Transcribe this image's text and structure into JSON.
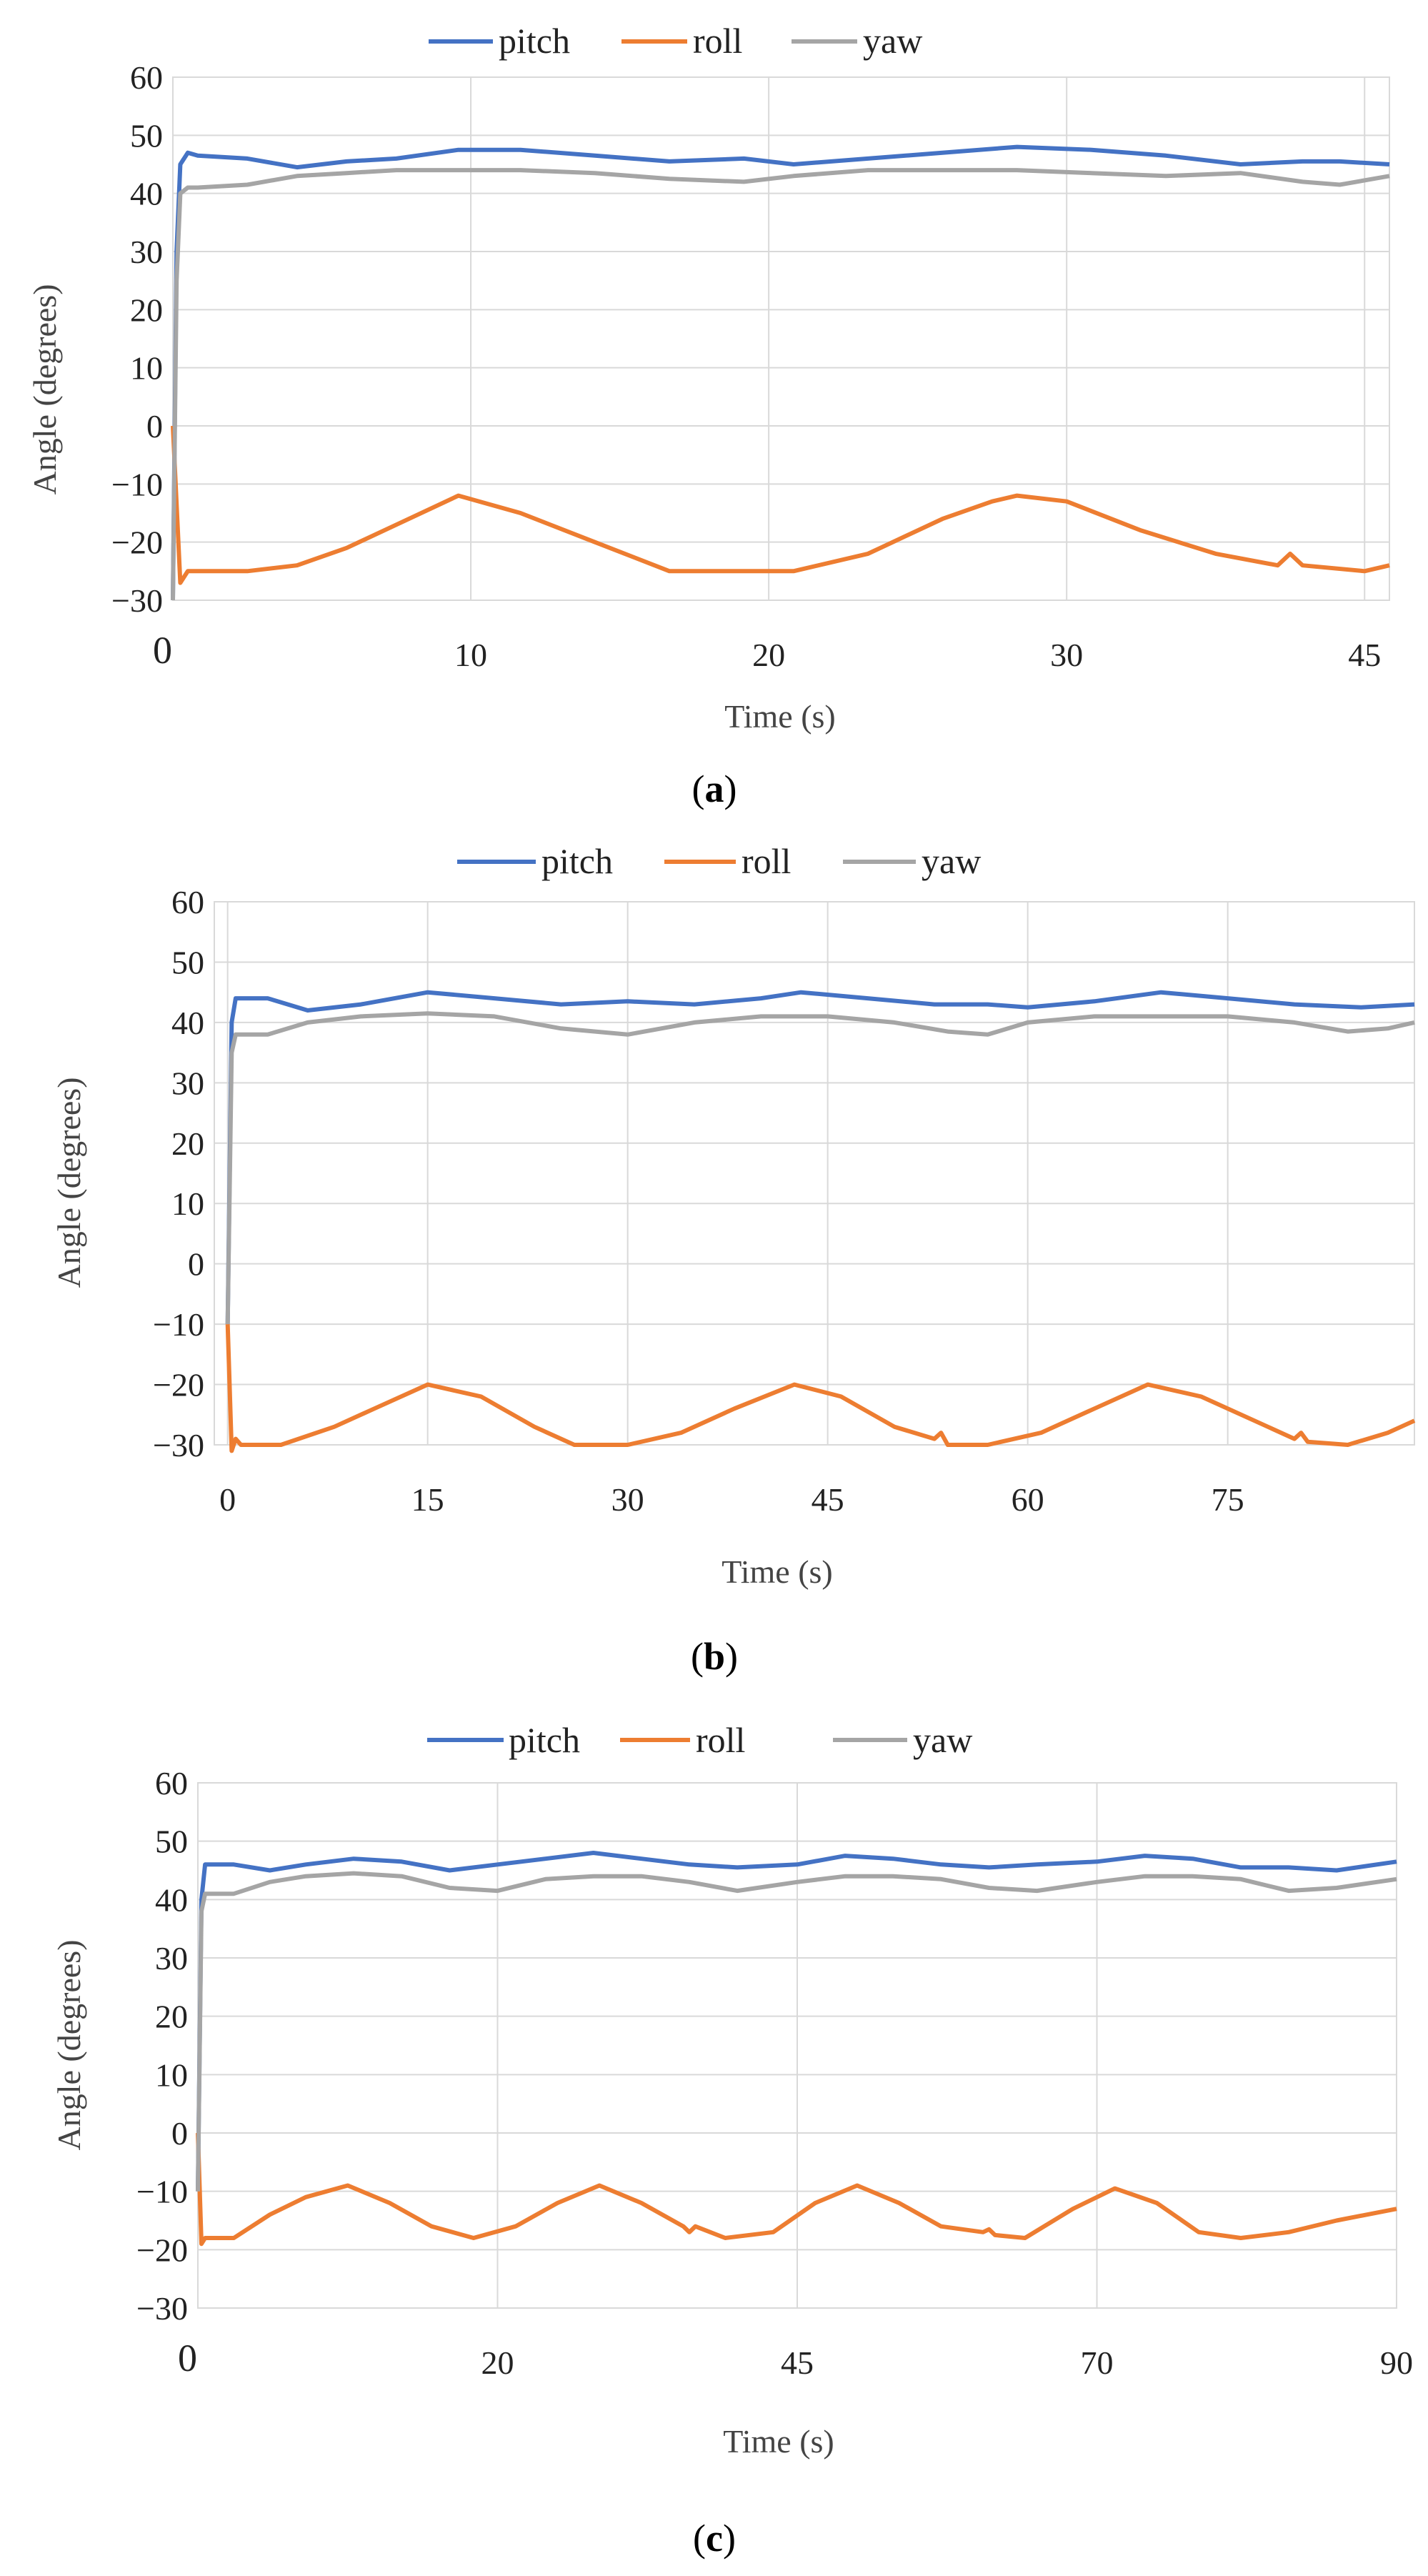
{
  "colors": {
    "pitch": "#4472C4",
    "roll": "#ED7D31",
    "yaw": "#A5A5A5",
    "grid": "#D9D9D9"
  },
  "chart_data": [
    {
      "type": "line",
      "panel_label": "a",
      "legend": [
        "pitch",
        "roll",
        "yaw"
      ],
      "xlabel": "Time (s)",
      "ylabel": "Angle (degrees)",
      "ylim": [
        -30,
        60
      ],
      "yticks": [
        -30,
        -20,
        -10,
        0,
        10,
        20,
        30,
        40,
        50,
        60
      ],
      "xlim": [
        0,
        49
      ],
      "xticks": [
        {
          "value": 0,
          "label": "0",
          "big": true
        },
        {
          "value": 12,
          "label": "10"
        },
        {
          "value": 24,
          "label": "20"
        },
        {
          "value": 36,
          "label": "30"
        },
        {
          "value": 48,
          "label": "45"
        }
      ],
      "series": [
        {
          "name": "pitch",
          "x": [
            0,
            0.15,
            0.3,
            0.6,
            1,
            3,
            5,
            7,
            9,
            11.5,
            14,
            17,
            20,
            23,
            25,
            28,
            31,
            34,
            37,
            40,
            43,
            45.5,
            47,
            49
          ],
          "y": [
            -30,
            30,
            45,
            47,
            46.5,
            46,
            44.5,
            45.5,
            46,
            47.5,
            47.5,
            46.5,
            45.5,
            46,
            45,
            46,
            47,
            48,
            47.5,
            46.5,
            45,
            45.5,
            45.5,
            45
          ]
        },
        {
          "name": "roll",
          "x": [
            0,
            0.3,
            0.6,
            1,
            3,
            5,
            7,
            9,
            11.5,
            14,
            17,
            20,
            23,
            25,
            28,
            31,
            33,
            34,
            36,
            39,
            42,
            44.5,
            45,
            45.5,
            48,
            49
          ],
          "y": [
            0,
            -27,
            -25,
            -25,
            -25,
            -24,
            -21,
            -17,
            -12,
            -15,
            -20,
            -25,
            -25,
            -25,
            -22,
            -16,
            -13,
            -12,
            -13,
            -18,
            -22,
            -24,
            -22,
            -24,
            -25,
            -24
          ]
        },
        {
          "name": "yaw",
          "x": [
            0,
            0.15,
            0.3,
            0.6,
            1,
            3,
            5,
            7,
            9,
            11.5,
            14,
            17,
            20,
            23,
            25,
            28,
            31,
            34,
            37,
            40,
            43,
            45.5,
            47,
            49
          ],
          "y": [
            -30,
            25,
            40,
            41,
            41,
            41.5,
            43,
            43.5,
            44,
            44,
            44,
            43.5,
            42.5,
            42,
            43,
            44,
            44,
            44,
            43.5,
            43,
            43.5,
            42,
            41.5,
            43
          ]
        }
      ]
    },
    {
      "type": "line",
      "panel_label": "b",
      "legend": [
        "pitch",
        "roll",
        "yaw"
      ],
      "xlabel": "Time (s)",
      "ylabel": "Angle (degrees)",
      "ylim": [
        -30,
        60
      ],
      "yticks": [
        -30,
        -20,
        -10,
        0,
        10,
        20,
        30,
        40,
        50,
        60
      ],
      "xlim": [
        -1,
        89
      ],
      "xticks": [
        {
          "value": 0,
          "label": "0"
        },
        {
          "value": 15,
          "label": "15"
        },
        {
          "value": 30,
          "label": "30"
        },
        {
          "value": 45,
          "label": "45"
        },
        {
          "value": 60,
          "label": "60"
        },
        {
          "value": 75,
          "label": "75"
        }
      ],
      "series": [
        {
          "name": "pitch",
          "x": [
            0,
            0.3,
            0.6,
            1,
            3,
            6,
            10,
            15,
            20,
            25,
            30,
            35,
            40,
            43,
            48,
            53,
            57,
            60,
            65,
            70,
            75,
            80,
            85,
            89
          ],
          "y": [
            -10,
            40,
            44,
            44,
            44,
            42,
            43,
            45,
            44,
            43,
            43.5,
            43,
            44,
            45,
            44,
            43,
            43,
            42.5,
            43.5,
            45,
            44,
            43,
            42.5,
            43
          ]
        },
        {
          "name": "roll",
          "x": [
            0,
            0.3,
            0.6,
            1,
            4,
            8,
            11,
            15,
            19,
            23,
            26,
            30,
            34,
            38,
            42.5,
            46,
            50,
            53,
            53.5,
            54,
            57,
            61,
            65,
            69,
            73,
            77,
            80,
            80.5,
            81,
            84,
            87,
            89
          ],
          "y": [
            -10,
            -31,
            -29,
            -30,
            -30,
            -27,
            -24,
            -20,
            -22,
            -27,
            -30,
            -30,
            -28,
            -24,
            -20,
            -22,
            -27,
            -29,
            -28,
            -30,
            -30,
            -28,
            -24,
            -20,
            -22,
            -26,
            -29,
            -28,
            -29.5,
            -30,
            -28,
            -26
          ]
        },
        {
          "name": "yaw",
          "x": [
            0,
            0.3,
            0.6,
            1,
            3,
            6,
            10,
            15,
            20,
            25,
            30,
            35,
            40,
            45,
            50,
            54,
            57,
            60,
            65,
            70,
            75,
            80,
            84,
            87,
            89
          ],
          "y": [
            -10,
            35,
            38,
            38,
            38,
            40,
            41,
            41.5,
            41,
            39,
            38,
            40,
            41,
            41,
            40,
            38.5,
            38,
            40,
            41,
            41,
            41,
            40,
            38.5,
            39,
            40
          ]
        }
      ]
    },
    {
      "type": "line",
      "panel_label": "c",
      "legend": [
        "pitch",
        "roll",
        "yaw"
      ],
      "xlabel": "Time (s)",
      "ylabel": "Angle (degrees)",
      "ylim": [
        -30,
        60
      ],
      "yticks": [
        -30,
        -20,
        -10,
        0,
        10,
        20,
        30,
        40,
        50,
        60
      ],
      "xlim": [
        0,
        100
      ],
      "xticks": [
        {
          "value": 0,
          "label": "0",
          "big": true
        },
        {
          "value": 25,
          "label": "20"
        },
        {
          "value": 50,
          "label": "45"
        },
        {
          "value": 75,
          "label": "70"
        },
        {
          "value": 100,
          "label": "90"
        }
      ],
      "series": [
        {
          "name": "pitch",
          "x": [
            0,
            0.3,
            0.6,
            1,
            3,
            6,
            9,
            13,
            17,
            21,
            25,
            29,
            33,
            37,
            41,
            45,
            50,
            54,
            58,
            62,
            66,
            70,
            75,
            79,
            83,
            87,
            91,
            95,
            100
          ],
          "y": [
            -10,
            40,
            46,
            46,
            46,
            45,
            46,
            47,
            46.5,
            45,
            46,
            47,
            48,
            47,
            46,
            45.5,
            46,
            47.5,
            47,
            46,
            45.5,
            46,
            46.5,
            47.5,
            47,
            45.5,
            45.5,
            45,
            46.5
          ]
        },
        {
          "name": "roll",
          "x": [
            0,
            0.3,
            0.6,
            1,
            3,
            6,
            9,
            12.5,
            16,
            19.5,
            23,
            26.5,
            30,
            33.5,
            37,
            40.5,
            41,
            41.5,
            44,
            48,
            51.5,
            55,
            58.5,
            62,
            65.5,
            66,
            66.5,
            69,
            73,
            76.5,
            80,
            83.5,
            87,
            91,
            95,
            100
          ],
          "y": [
            0,
            -19,
            -18,
            -18,
            -18,
            -14,
            -11,
            -9,
            -12,
            -16,
            -18,
            -16,
            -12,
            -9,
            -12,
            -16,
            -17,
            -16,
            -18,
            -17,
            -12,
            -9,
            -12,
            -16,
            -17,
            -16.5,
            -17.5,
            -18,
            -13,
            -9.5,
            -12,
            -17,
            -18,
            -17,
            -15,
            -13
          ]
        },
        {
          "name": "yaw",
          "x": [
            0,
            0.3,
            0.6,
            1,
            3,
            6,
            9,
            13,
            17,
            21,
            25,
            29,
            33,
            37,
            41,
            45,
            50,
            54,
            58,
            62,
            66,
            70,
            75,
            79,
            83,
            87,
            91,
            95,
            100
          ],
          "y": [
            -10,
            38,
            41,
            41,
            41,
            43,
            44,
            44.5,
            44,
            42,
            41.5,
            43.5,
            44,
            44,
            43,
            41.5,
            43,
            44,
            44,
            43.5,
            42,
            41.5,
            43,
            44,
            44,
            43.5,
            41.5,
            42,
            43.5
          ]
        }
      ]
    }
  ]
}
